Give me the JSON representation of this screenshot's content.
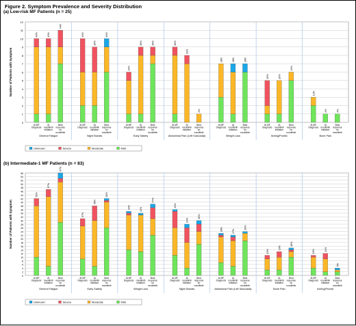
{
  "figure_title": "Figure 2. Symptom Prevalence and Severity Distribution",
  "colors": {
    "Unknown": "#1aa7e8",
    "Severe": "#f0535f",
    "Moderate": "#fbb727",
    "Mild": "#6ee55a"
  },
  "chart_data": [
    {
      "type": "bar",
      "stacked": true,
      "title": "(a) Low-risk MF Patients (n = 25)",
      "ylabel": "Number of Patients with Symptom",
      "ylim": [
        0,
        12
      ],
      "yticks": [
        0,
        1,
        2,
        3,
        4,
        5,
        6,
        7,
        8,
        9,
        10,
        11,
        12
      ],
      "legend_position": "bottom",
      "grid": true,
      "stack_order": [
        "Mild",
        "Moderate",
        "Severe",
        "Unknown"
      ],
      "bar_labels": [
        "At MF Diagnosis",
        "At ruxolitinib initiation",
        "Best response on ruxolitinib"
      ],
      "groups": [
        {
          "name": "General Fatigue",
          "bars": [
            {
              "Mild": 1,
              "Moderate": 8,
              "Severe": 1,
              "Unknown": 0,
              "label": "40%"
            },
            {
              "Mild": 1,
              "Moderate": 8,
              "Severe": 1,
              "Unknown": 0,
              "label": "40%"
            },
            {
              "Mild": 7,
              "Moderate": 2,
              "Severe": 2,
              "Unknown": 0,
              "label": "44%"
            }
          ]
        },
        {
          "name": "Night Sweats",
          "bars": [
            {
              "Mild": 2,
              "Moderate": 4,
              "Severe": 4,
              "Unknown": 0,
              "label": "40%"
            },
            {
              "Mild": 2,
              "Moderate": 4,
              "Severe": 3,
              "Unknown": 0,
              "label": "36%"
            },
            {
              "Mild": 6,
              "Moderate": 3,
              "Severe": 0,
              "Unknown": 1,
              "label": "40%"
            }
          ]
        },
        {
          "name": "Early Satiety",
          "bars": [
            {
              "Mild": 1,
              "Moderate": 4,
              "Severe": 1,
              "Unknown": 0,
              "label": "24%"
            },
            {
              "Mild": 1,
              "Moderate": 7,
              "Severe": 1,
              "Unknown": 0,
              "label": "36%"
            },
            {
              "Mild": 7,
              "Moderate": 1,
              "Severe": 1,
              "Unknown": 0,
              "label": "36%"
            }
          ]
        },
        {
          "name": "Abdominal Pain (Left Subcostal)",
          "bars": [
            {
              "Mild": 1,
              "Moderate": 7,
              "Severe": 1,
              "Unknown": 0,
              "label": "36%"
            },
            {
              "Mild": 0,
              "Moderate": 7,
              "Severe": 1,
              "Unknown": 0,
              "label": "32%"
            },
            {
              "Mild": 0,
              "Moderate": 1,
              "Severe": 0,
              "Unknown": 0,
              "label": "4%"
            }
          ]
        },
        {
          "name": "Weight Loss",
          "bars": [
            {
              "Mild": 3,
              "Moderate": 4,
              "Severe": 0,
              "Unknown": 0,
              "label": "28%"
            },
            {
              "Mild": 1,
              "Moderate": 5,
              "Severe": 0,
              "Unknown": 1,
              "label": "28%"
            },
            {
              "Mild": 6,
              "Moderate": 0,
              "Severe": 0,
              "Unknown": 1,
              "label": "28%"
            }
          ]
        },
        {
          "name": "Itching/Pruritic",
          "bars": [
            {
              "Mild": 1,
              "Moderate": 1,
              "Severe": 3,
              "Unknown": 0,
              "label": "20%"
            },
            {
              "Mild": 1,
              "Moderate": 4,
              "Severe": 0,
              "Unknown": 0,
              "label": "20%"
            },
            {
              "Mild": 5,
              "Moderate": 1,
              "Severe": 0,
              "Unknown": 0,
              "label": "24%"
            }
          ]
        },
        {
          "name": "Bone Pain",
          "bars": [
            {
              "Mild": 2,
              "Moderate": 1,
              "Severe": 0,
              "Unknown": 0,
              "label": "12%"
            },
            {
              "Mild": 1,
              "Moderate": 0,
              "Severe": 0,
              "Unknown": 0,
              "label": "4%"
            },
            {
              "Mild": 1,
              "Moderate": 0,
              "Severe": 0,
              "Unknown": 0,
              "label": "4%"
            }
          ]
        }
      ]
    },
    {
      "type": "bar",
      "stacked": true,
      "title": "(b) Intermediate-1 MF Patients (n = 83)",
      "ylabel": "Number of Patients with Symptom",
      "ylim": [
        0,
        56
      ],
      "yticks": [
        0,
        2,
        4,
        6,
        8,
        10,
        12,
        14,
        16,
        18,
        20,
        22,
        24,
        26,
        28,
        30,
        32,
        34,
        36,
        38,
        40,
        42,
        44,
        46,
        48,
        50,
        52,
        54,
        56
      ],
      "legend_position": "bottom",
      "grid": true,
      "stack_order": [
        "Mild",
        "Moderate",
        "Severe",
        "Unknown"
      ],
      "bar_labels": [
        "At MF Diagnosis",
        "At ruxolitinib initiation",
        "Best response on ruxolitinib"
      ],
      "groups": [
        {
          "name": "General Fatigue",
          "bars": [
            {
              "Mild": 10,
              "Moderate": 28,
              "Severe": 4,
              "Unknown": 0,
              "label": "51%"
            },
            {
              "Mild": 5,
              "Moderate": 38,
              "Severe": 4,
              "Unknown": 0,
              "label": "57%"
            },
            {
              "Mild": 29,
              "Moderate": 22,
              "Severe": 2,
              "Unknown": 3,
              "label": "67%"
            }
          ]
        },
        {
          "name": "Early Satiety",
          "bars": [
            {
              "Mild": 9,
              "Moderate": 18,
              "Severe": 4,
              "Unknown": 0,
              "label": "37%"
            },
            {
              "Mild": 5,
              "Moderate": 25,
              "Severe": 8,
              "Unknown": 0,
              "label": "46%"
            },
            {
              "Mild": 26,
              "Moderate": 14,
              "Severe": 1,
              "Unknown": 1,
              "label": "51%"
            }
          ]
        },
        {
          "name": "Weight Loss",
          "bars": [
            {
              "Mild": 14,
              "Moderate": 19,
              "Severe": 1,
              "Unknown": 1,
              "label": "42%"
            },
            {
              "Mild": 13,
              "Moderate": 20,
              "Severe": 0,
              "Unknown": 1,
              "label": "41%"
            },
            {
              "Mild": 22,
              "Moderate": 9,
              "Severe": 6,
              "Unknown": 2,
              "label": "47%"
            }
          ]
        },
        {
          "name": "Night Sweats",
          "bars": [
            {
              "Mild": 11,
              "Moderate": 15,
              "Severe": 9,
              "Unknown": 1,
              "label": "43%"
            },
            {
              "Mild": 4,
              "Moderate": 14,
              "Severe": 8,
              "Unknown": 2,
              "label": "34%"
            },
            {
              "Mild": 17,
              "Moderate": 7,
              "Severe": 4,
              "Unknown": 2,
              "label": "36%"
            }
          ]
        },
        {
          "name": "Abdominal Pain (Left Subcostal)",
          "bars": [
            {
              "Mild": 7,
              "Moderate": 14,
              "Severe": 1,
              "Unknown": 1,
              "label": "28%"
            },
            {
              "Mild": 5,
              "Moderate": 14,
              "Severe": 2,
              "Unknown": 1,
              "label": "27%"
            },
            {
              "Mild": 19,
              "Moderate": 4,
              "Severe": 0,
              "Unknown": 1,
              "label": "29%"
            }
          ]
        },
        {
          "name": "Bone Pain",
          "bars": [
            {
              "Mild": 3,
              "Moderate": 6,
              "Severe": 2,
              "Unknown": 0,
              "label": "13%"
            },
            {
              "Mild": 3,
              "Moderate": 7,
              "Severe": 3,
              "Unknown": 0,
              "label": "16%"
            },
            {
              "Mild": 10,
              "Moderate": 3,
              "Severe": 1,
              "Unknown": 1,
              "label": "18%"
            }
          ]
        },
        {
          "name": "Itching/Pruritic",
          "bars": [
            {
              "Mild": 4,
              "Moderate": 6,
              "Severe": 1,
              "Unknown": 0,
              "label": "13%"
            },
            {
              "Mild": 2,
              "Moderate": 7,
              "Severe": 3,
              "Unknown": 0,
              "label": "14%"
            },
            {
              "Mild": 2,
              "Moderate": 1,
              "Severe": 0,
              "Unknown": 1,
              "label": "5%"
            }
          ]
        }
      ]
    }
  ],
  "legend": [
    "Unknown",
    "Severe",
    "Moderate",
    "Mild"
  ]
}
